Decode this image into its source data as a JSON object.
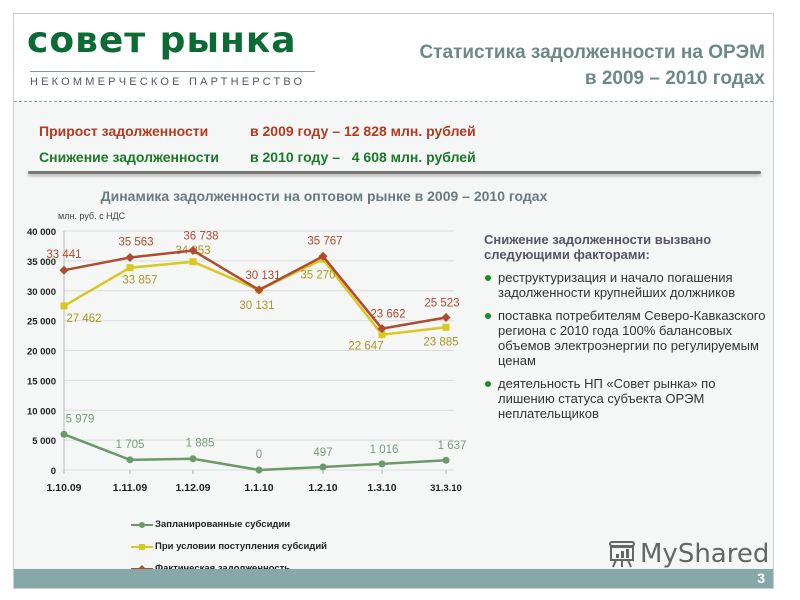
{
  "header": {
    "logo_main": "совет рынка",
    "logo_sub": "НЕКОММЕРЧЕСКОЕ ПАРТНЕРСТВО",
    "title_line1": "Статистика задолженности на ОРЭМ",
    "title_line2": "в 2009 – 2010 годах"
  },
  "summary": {
    "row1": {
      "label": "Прирост задолженности",
      "value": "в 2009 году – 12 828 млн. рублей",
      "color": "#b23a1f"
    },
    "row2": {
      "label": "Снижение задолженности",
      "value": "в 2010 году –   4 608 млн. рублей",
      "color": "#1a7a2a"
    }
  },
  "factors": {
    "title": "Снижение задолженности вызвано следующими факторами:",
    "items": [
      "реструктуризация и начало погашения задолженности крупнейших должников",
      "поставка потребителям Северо-Кавказского региона с 2010 года 100% балансовых объемов электроэнергии по регулируемым ценам",
      "деятельность НП «Совет рынка» по лишению статуса субъекта ОРЭМ неплательщиков"
    ]
  },
  "footer": {
    "page_number": "3",
    "watermark": "MyShared"
  },
  "chart_data": {
    "type": "line",
    "title": "Динамика задолженности на оптовом рынке в 2009 – 2010 годах",
    "ylabel": "млн. руб. с НДС",
    "xlabel": "",
    "categories": [
      "1.10.09",
      "1.11.09",
      "1.12.09",
      "1.1.10",
      "1.2.10",
      "1.3.10",
      "31.3.10"
    ],
    "ylim": [
      0,
      40000
    ],
    "yticks": [
      "0",
      "5 000",
      "10 000",
      "15 000",
      "20 000",
      "25 000",
      "30 000",
      "35 000",
      "40 000"
    ],
    "grid": true,
    "legend_position": "bottom",
    "series": [
      {
        "name": "Запланированные субсидии",
        "color": "#6a9a6a",
        "marker": "circle",
        "values": [
          5979,
          1705,
          1885,
          0,
          497,
          1016,
          1637
        ],
        "labels": [
          "5 979",
          "1 705",
          "1 885",
          "0",
          "497",
          "1 016",
          "1 637"
        ]
      },
      {
        "name": "При условии поступления субсидий",
        "color": "#d8c820",
        "marker": "square",
        "values": [
          27462,
          33857,
          34853,
          30131,
          35270,
          22647,
          23885
        ],
        "labels": [
          "27 462",
          "33 857",
          "34 853",
          "30 131",
          "35 270",
          "22 647",
          "23 885"
        ]
      },
      {
        "name": "Фактическая задолженность",
        "color": "#b04a30",
        "marker": "diamond",
        "values": [
          33441,
          35563,
          36738,
          30131,
          35767,
          23662,
          25523
        ],
        "labels": [
          "33 441",
          "35 563",
          "36 738",
          "30 131",
          "35 767",
          "23 662",
          "25 523"
        ]
      }
    ]
  }
}
